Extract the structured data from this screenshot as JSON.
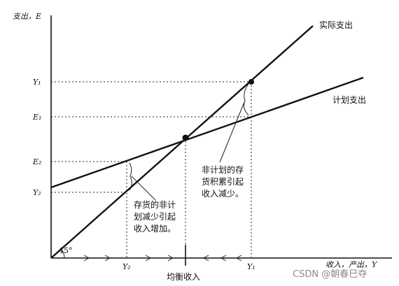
{
  "axes": {
    "y_label": "支出，E",
    "x_label": "收入，产出，Y",
    "angle_label": "45°"
  },
  "lines": {
    "actual": "实际支出",
    "planned": "计划支出"
  },
  "y_ticks": {
    "y1": "Y₁",
    "e1": "E₁",
    "e2": "E₂",
    "y2": "Y₂"
  },
  "x_ticks": {
    "y2": "Y₂",
    "y1": "Y₁"
  },
  "equilibrium_label": "均衡收入",
  "notes": {
    "accumulation": [
      "非计划的存",
      "货积累引起",
      "收入减少。"
    ],
    "depletion": [
      "存货的非计",
      "划减少引起",
      "收入增加。"
    ]
  },
  "watermark": "CSDN @朝春巳夺"
}
